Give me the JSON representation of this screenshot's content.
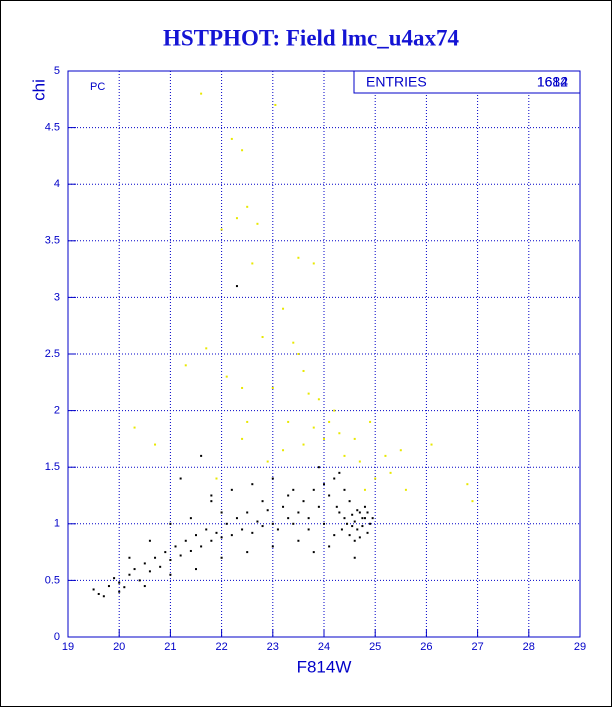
{
  "chart_data": {
    "type": "scatter",
    "title": "HSTPHOT: Field lmc_u4ax74",
    "x_label": "F814W",
    "y_label": "chi",
    "annotation": "PC",
    "stats_label": "ENTRIES",
    "stats_values": [
      "1682",
      "1614"
    ],
    "xlim": [
      19,
      29
    ],
    "ylim": [
      0,
      5
    ],
    "xticks": [
      19,
      20,
      21,
      22,
      23,
      24,
      25,
      26,
      27,
      28,
      29
    ],
    "yticks": [
      0,
      0.5,
      1,
      1.5,
      2,
      2.5,
      3,
      3.5,
      4,
      4.5,
      5
    ],
    "grid": true,
    "series": [
      {
        "color": "#000000",
        "x": [
          19.5,
          19.6,
          19.7,
          19.8,
          19.9,
          20.0,
          20.1,
          20.2,
          20.3,
          20.4,
          20.5,
          20.6,
          20.7,
          20.8,
          20.9,
          21.0,
          21.1,
          21.2,
          21.3,
          21.4,
          21.5,
          21.6,
          21.7,
          21.8,
          21.9,
          22.0,
          22.1,
          22.2,
          22.3,
          22.4,
          22.5,
          22.6,
          22.7,
          22.8,
          22.9,
          23.0,
          23.1,
          23.2,
          23.3,
          23.4,
          23.5,
          23.6,
          23.7,
          23.8,
          23.9,
          24.0,
          24.1,
          24.2,
          24.3,
          24.35,
          24.4,
          24.45,
          24.5,
          24.55,
          24.6,
          24.65,
          24.7,
          24.75,
          24.8,
          24.85,
          24.9,
          24.5,
          24.6,
          24.4,
          24.3,
          24.2,
          24.7,
          24.8,
          23.9,
          24.0,
          23.5,
          23.0,
          22.5,
          22.0,
          21.5,
          21.0,
          20.5,
          20.0,
          20.2,
          20.6,
          21.0,
          21.4,
          21.8,
          22.2,
          22.6,
          23.0,
          23.4,
          23.8,
          24.1,
          24.6,
          21.2,
          21.6,
          22.3,
          21.8,
          22.0,
          22.8,
          23.3,
          23.7,
          24.25,
          24.55,
          24.65,
          24.75,
          24.95,
          24.85
        ],
        "values": [
          0.42,
          0.38,
          0.36,
          0.45,
          0.52,
          0.48,
          0.44,
          0.55,
          0.6,
          0.5,
          0.65,
          0.58,
          0.7,
          0.62,
          0.75,
          0.68,
          0.8,
          0.72,
          0.85,
          0.76,
          0.9,
          0.8,
          0.95,
          0.85,
          0.92,
          0.88,
          1.0,
          0.9,
          1.05,
          0.95,
          1.1,
          0.92,
          1.02,
          0.98,
          1.12,
          1.0,
          0.95,
          1.15,
          1.05,
          1.0,
          1.1,
          1.2,
          1.05,
          1.3,
          1.15,
          1.0,
          1.25,
          1.4,
          1.1,
          0.95,
          1.05,
          1.0,
          0.9,
          1.08,
          1.02,
          0.95,
          1.1,
          0.98,
          1.05,
          0.92,
          1.0,
          1.2,
          0.85,
          1.3,
          1.45,
          0.9,
          0.88,
          1.15,
          1.5,
          1.35,
          0.85,
          0.8,
          0.75,
          0.7,
          0.6,
          0.55,
          0.45,
          0.4,
          0.7,
          0.85,
          1.0,
          1.05,
          1.2,
          1.3,
          1.35,
          1.4,
          1.3,
          0.75,
          0.8,
          0.7,
          1.4,
          1.6,
          3.1,
          1.25,
          1.1,
          1.2,
          1.25,
          0.95,
          1.15,
          0.98,
          1.12,
          1.05,
          1.05,
          1.1
        ]
      },
      {
        "color": "#e8e800",
        "x": [
          22.2,
          22.4,
          22.5,
          22.3,
          22.7,
          22.6,
          21.6,
          23.05,
          23.5,
          23.8,
          23.2,
          23.4,
          22.8,
          22.1,
          21.7,
          21.3,
          22.4,
          23.6,
          23.9,
          24.1,
          23.8,
          24.0,
          23.6,
          24.3,
          24.6,
          24.9,
          25.2,
          25.5,
          26.1,
          26.8,
          26.9,
          25.0,
          25.3,
          24.8,
          22.4,
          23.2,
          22.9,
          20.3,
          20.7,
          24.2,
          23.7,
          24.4,
          23.3,
          22.5,
          21.9,
          24.7,
          25.6,
          23.5,
          22.0,
          23.0
        ],
        "values": [
          4.4,
          4.3,
          3.8,
          3.7,
          3.65,
          3.3,
          4.8,
          4.7,
          3.35,
          3.3,
          2.9,
          2.6,
          2.65,
          2.3,
          2.55,
          2.4,
          2.2,
          2.35,
          2.1,
          1.9,
          1.85,
          1.75,
          1.7,
          1.8,
          1.75,
          1.9,
          1.6,
          1.65,
          1.7,
          1.35,
          1.2,
          1.4,
          1.45,
          1.3,
          1.75,
          1.65,
          1.55,
          1.85,
          1.7,
          2.0,
          2.15,
          1.6,
          1.9,
          1.9,
          1.4,
          1.55,
          1.3,
          2.5,
          3.6,
          2.2
        ]
      }
    ]
  }
}
